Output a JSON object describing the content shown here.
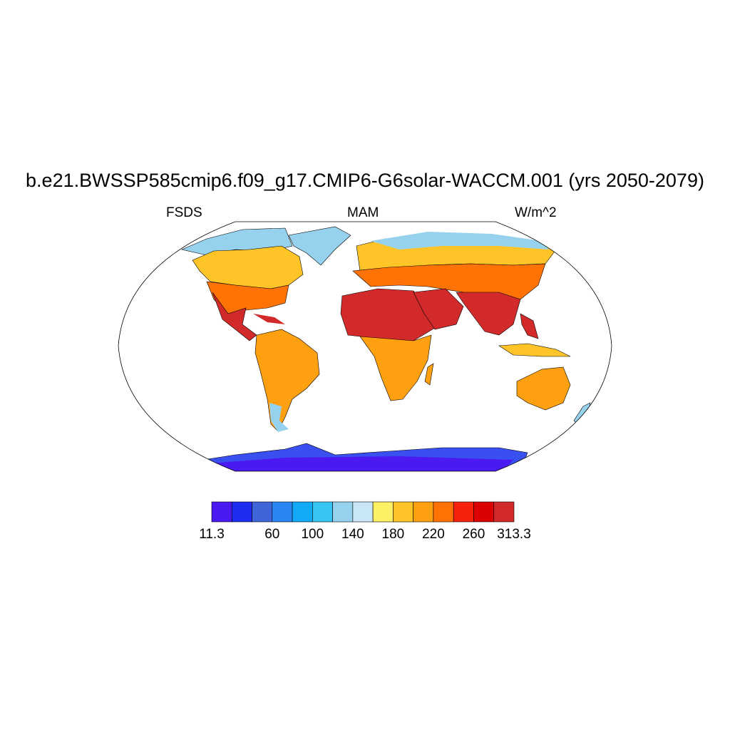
{
  "title": "b.e21.BWSSP585cmip6.f09_g17.CMIP6-G6solar-WACCM.001 (yrs 2050-2079)",
  "left_string": "FSDS",
  "center_string": "MAM",
  "right_string": "W/m^2",
  "colorbar": {
    "colors": [
      "#4a1af0",
      "#1e2ef0",
      "#4065d8",
      "#2a86f2",
      "#12aaf6",
      "#36c4f2",
      "#96d2ee",
      "#c8e6f6",
      "#fef064",
      "#fec428",
      "#fea010",
      "#fe7206",
      "#f8220c",
      "#dc0202",
      "#d22a2a"
    ],
    "labels": [
      "11.3",
      "60",
      "100",
      "140",
      "180",
      "220",
      "260",
      "313.3"
    ],
    "levels": [
      11.3,
      60,
      100,
      140,
      180,
      220,
      260,
      313.3
    ]
  },
  "map": {
    "projection": "robinson",
    "region_fills": {
      "antarctica": "#3a4ff0",
      "antarctica_interior": "#4a1af0",
      "greenland": "#96d2ee",
      "north_america_north": "#fec428",
      "north_america_south": "#fe7206",
      "mexico": "#d22a2a",
      "south_america": "#fea010",
      "africa_north": "#d22a2a",
      "africa_south": "#fea010",
      "eurasia_north": "#fec428",
      "eurasia_mid": "#fe7206",
      "arabia": "#d22a2a",
      "india": "#d22a2a",
      "australia": "#fea010",
      "siberia_arctic": "#96d2ee"
    }
  }
}
